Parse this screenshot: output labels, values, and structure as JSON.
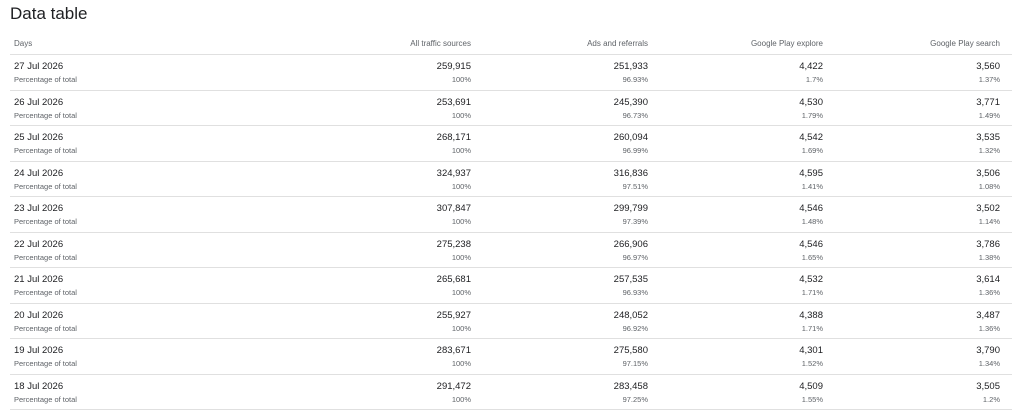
{
  "header": {
    "title": "Data table"
  },
  "table": {
    "columns": [
      "Days",
      "All traffic sources",
      "Ads and referrals",
      "Google Play explore",
      "Google Play search"
    ],
    "sub_label": "Percentage of total",
    "rows": [
      {
        "day": "27 Jul 2026",
        "values": [
          "259,915",
          "251,933",
          "4,422",
          "3,560"
        ],
        "percentages": [
          "100%",
          "96.93%",
          "1.7%",
          "1.37%"
        ]
      },
      {
        "day": "26 Jul 2026",
        "values": [
          "253,691",
          "245,390",
          "4,530",
          "3,771"
        ],
        "percentages": [
          "100%",
          "96.73%",
          "1.79%",
          "1.49%"
        ]
      },
      {
        "day": "25 Jul 2026",
        "values": [
          "268,171",
          "260,094",
          "4,542",
          "3,535"
        ],
        "percentages": [
          "100%",
          "96.99%",
          "1.69%",
          "1.32%"
        ]
      },
      {
        "day": "24 Jul 2026",
        "values": [
          "324,937",
          "316,836",
          "4,595",
          "3,506"
        ],
        "percentages": [
          "100%",
          "97.51%",
          "1.41%",
          "1.08%"
        ]
      },
      {
        "day": "23 Jul 2026",
        "values": [
          "307,847",
          "299,799",
          "4,546",
          "3,502"
        ],
        "percentages": [
          "100%",
          "97.39%",
          "1.48%",
          "1.14%"
        ]
      },
      {
        "day": "22 Jul 2026",
        "values": [
          "275,238",
          "266,906",
          "4,546",
          "3,786"
        ],
        "percentages": [
          "100%",
          "96.97%",
          "1.65%",
          "1.38%"
        ]
      },
      {
        "day": "21 Jul 2026",
        "values": [
          "265,681",
          "257,535",
          "4,532",
          "3,614"
        ],
        "percentages": [
          "100%",
          "96.93%",
          "1.71%",
          "1.36%"
        ]
      },
      {
        "day": "20 Jul 2026",
        "values": [
          "255,927",
          "248,052",
          "4,388",
          "3,487"
        ],
        "percentages": [
          "100%",
          "96.92%",
          "1.71%",
          "1.36%"
        ]
      },
      {
        "day": "19 Jul 2026",
        "values": [
          "283,671",
          "275,580",
          "4,301",
          "3,790"
        ],
        "percentages": [
          "100%",
          "97.15%",
          "1.52%",
          "1.34%"
        ]
      },
      {
        "day": "18 Jul 2026",
        "values": [
          "291,472",
          "283,458",
          "4,509",
          "3,505"
        ],
        "percentages": [
          "100%",
          "97.25%",
          "1.55%",
          "1.2%"
        ]
      }
    ]
  }
}
